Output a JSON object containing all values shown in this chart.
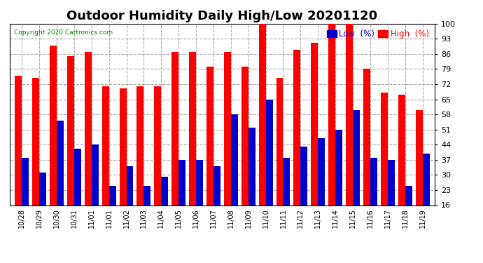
{
  "title": "Outdoor Humidity Daily High/Low 20201120",
  "copyright": "Copyright 2020 Cartronics.com",
  "legend_low": "Low  (%)",
  "legend_high": "High  (%)",
  "categories": [
    "10/28",
    "10/29",
    "10/30",
    "10/31",
    "11/01",
    "11/01",
    "11/02",
    "11/03",
    "11/04",
    "11/05",
    "11/06",
    "11/07",
    "11/08",
    "11/09",
    "11/10",
    "11/11",
    "11/12",
    "11/13",
    "11/14",
    "11/15",
    "11/16",
    "11/17",
    "11/18",
    "11/19"
  ],
  "high_values": [
    76,
    75,
    90,
    85,
    87,
    71,
    70,
    71,
    71,
    87,
    87,
    80,
    87,
    80,
    100,
    75,
    88,
    91,
    100,
    100,
    79,
    68,
    67,
    60
  ],
  "low_values": [
    38,
    31,
    55,
    42,
    44,
    25,
    34,
    25,
    29,
    37,
    37,
    34,
    58,
    52,
    65,
    38,
    43,
    47,
    51,
    60,
    38,
    37,
    25,
    40
  ],
  "high_color": "#ff0000",
  "low_color": "#0000cc",
  "background_color": "#ffffff",
  "plot_bg_color": "#ffffff",
  "grid_color": "#aaaaaa",
  "ylim": [
    16,
    100
  ],
  "yticks": [
    16,
    23,
    30,
    37,
    44,
    51,
    58,
    65,
    72,
    79,
    86,
    93,
    100
  ],
  "title_fontsize": 13,
  "bar_width": 0.4
}
